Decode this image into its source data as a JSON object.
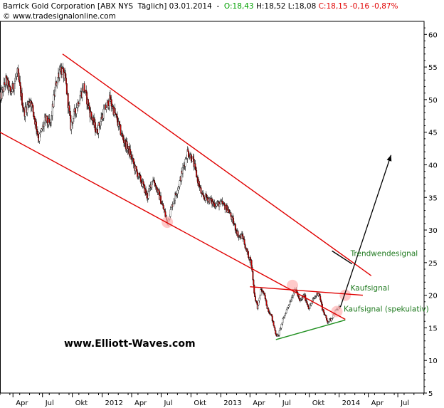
{
  "header": {
    "symbol_name": "Barrick Gold Corporation [ABX NYS  Täglich] 03.01.2014",
    "open": "O:18,43",
    "high": "H:18,52",
    "low": "L:18,08",
    "close": "C:18,15",
    "change": "-0,16",
    "change_pct": "-0,87%",
    "copyright": "© www.tradesignalonline.com",
    "up_color": "#00a000",
    "down_color": "#e00000"
  },
  "watermark": "www.Elliott-Waves.com",
  "chart_data": {
    "type": "candlestick",
    "y_axis_side": "right",
    "ylim": [
      5,
      62
    ],
    "yticks": [
      5,
      10,
      15,
      20,
      25,
      30,
      35,
      40,
      45,
      50,
      55,
      60
    ],
    "xlim": [
      "2011-02-20",
      "2014-09-20"
    ],
    "xticks": [
      {
        "label": "Apr",
        "date": "2011-04-01"
      },
      {
        "label": "Jul",
        "date": "2011-07-01"
      },
      {
        "label": "Okt",
        "date": "2011-10-01"
      },
      {
        "label": "2012",
        "date": "2012-01-01"
      },
      {
        "label": "Apr",
        "date": "2012-04-01"
      },
      {
        "label": "Jul",
        "date": "2012-07-01"
      },
      {
        "label": "Okt",
        "date": "2012-10-01"
      },
      {
        "label": "2013",
        "date": "2013-01-01"
      },
      {
        "label": "Apr",
        "date": "2013-04-01"
      },
      {
        "label": "Jul",
        "date": "2013-07-01"
      },
      {
        "label": "Okt",
        "date": "2013-10-01"
      },
      {
        "label": "2014",
        "date": "2014-01-01"
      },
      {
        "label": "Apr",
        "date": "2014-04-01"
      },
      {
        "label": "Jul",
        "date": "2014-07-01"
      }
    ],
    "price_path": [
      [
        "2011-02-20",
        50
      ],
      [
        "2011-03-10",
        53
      ],
      [
        "2011-03-25",
        51
      ],
      [
        "2011-04-15",
        54
      ],
      [
        "2011-05-05",
        48
      ],
      [
        "2011-05-25",
        50
      ],
      [
        "2011-06-20",
        44
      ],
      [
        "2011-07-10",
        47
      ],
      [
        "2011-07-25",
        46
      ],
      [
        "2011-08-10",
        52
      ],
      [
        "2011-08-25",
        55
      ],
      [
        "2011-09-10",
        53
      ],
      [
        "2011-09-26",
        46
      ],
      [
        "2011-10-15",
        49
      ],
      [
        "2011-11-05",
        52
      ],
      [
        "2011-11-25",
        48
      ],
      [
        "2011-12-15",
        45
      ],
      [
        "2012-01-05",
        48
      ],
      [
        "2012-01-25",
        50
      ],
      [
        "2012-02-15",
        47
      ],
      [
        "2012-03-05",
        44
      ],
      [
        "2012-03-25",
        42
      ],
      [
        "2012-04-15",
        39
      ],
      [
        "2012-05-05",
        37
      ],
      [
        "2012-05-20",
        35
      ],
      [
        "2012-06-05",
        38
      ],
      [
        "2012-06-20",
        36
      ],
      [
        "2012-07-10",
        33
      ],
      [
        "2012-07-20",
        31
      ],
      [
        "2012-08-05",
        34
      ],
      [
        "2012-08-25",
        37
      ],
      [
        "2012-09-10",
        40
      ],
      [
        "2012-09-20",
        42
      ],
      [
        "2012-10-05",
        41
      ],
      [
        "2012-10-20",
        38
      ],
      [
        "2012-11-05",
        35
      ],
      [
        "2012-11-20",
        35
      ],
      [
        "2012-12-10",
        34
      ],
      [
        "2013-01-05",
        34
      ],
      [
        "2013-01-25",
        33
      ],
      [
        "2013-02-10",
        31
      ],
      [
        "2013-02-25",
        29
      ],
      [
        "2013-03-10",
        29
      ],
      [
        "2013-03-20",
        27
      ],
      [
        "2013-04-05",
        25
      ],
      [
        "2013-04-15",
        20
      ],
      [
        "2013-04-25",
        18
      ],
      [
        "2013-05-05",
        21
      ],
      [
        "2013-05-15",
        20
      ],
      [
        "2013-05-25",
        18
      ],
      [
        "2013-06-05",
        17
      ],
      [
        "2013-06-20",
        14
      ],
      [
        "2013-06-27",
        13.7
      ],
      [
        "2013-07-10",
        16
      ],
      [
        "2013-07-25",
        18
      ],
      [
        "2013-08-10",
        20
      ],
      [
        "2013-08-20",
        21
      ],
      [
        "2013-09-01",
        19
      ],
      [
        "2013-09-15",
        20
      ],
      [
        "2013-09-30",
        18
      ],
      [
        "2013-10-15",
        19.5
      ],
      [
        "2013-10-30",
        20.5
      ],
      [
        "2013-11-10",
        18
      ],
      [
        "2013-11-25",
        16
      ],
      [
        "2013-12-05",
        16.2
      ],
      [
        "2013-12-20",
        17.5
      ],
      [
        "2014-01-03",
        18.15
      ]
    ],
    "trendlines": [
      {
        "name": "upper-channel",
        "color": "#e00000",
        "from": [
          "2011-09-01",
          57
        ],
        "to": [
          "2014-04-10",
          23
        ]
      },
      {
        "name": "lower-channel",
        "color": "#e00000",
        "from": [
          "2011-02-20",
          45
        ],
        "to": [
          "2014-01-20",
          16.3
        ]
      },
      {
        "name": "horizontal-resistance",
        "color": "#e00000",
        "from": [
          "2013-04-01",
          21.3
        ],
        "to": [
          "2014-03-15",
          20
        ]
      },
      {
        "name": "support",
        "color": "#1f8f1f",
        "from": [
          "2013-06-20",
          13.2
        ],
        "to": [
          "2014-01-20",
          16.2
        ]
      },
      {
        "name": "forecast-arrow",
        "color": "#000000",
        "from": [
          "2014-01-05",
          18.2
        ],
        "to": [
          "2014-06-10",
          41.5
        ]
      },
      {
        "name": "short-segment",
        "color": "#000000",
        "from": [
          "2013-12-10",
          26.8
        ],
        "to": [
          "2014-02-10",
          24.8
        ]
      }
    ],
    "highlight_points": [
      {
        "date": "2012-07-20",
        "value": 31.2
      },
      {
        "date": "2013-08-10",
        "value": 21.5
      },
      {
        "date": "2013-12-25",
        "value": 17.5
      },
      {
        "date": "2014-01-20",
        "value": 20.0
      }
    ],
    "annotations": [
      {
        "text": "Trendwendesignal",
        "date": "2014-02-05",
        "value": 26
      },
      {
        "text": "Kaufsignal",
        "date": "2014-02-05",
        "value": 20.7
      },
      {
        "text": "Kaufsignal (spekulativ)",
        "date": "2014-01-15",
        "value": 17.5
      }
    ]
  }
}
